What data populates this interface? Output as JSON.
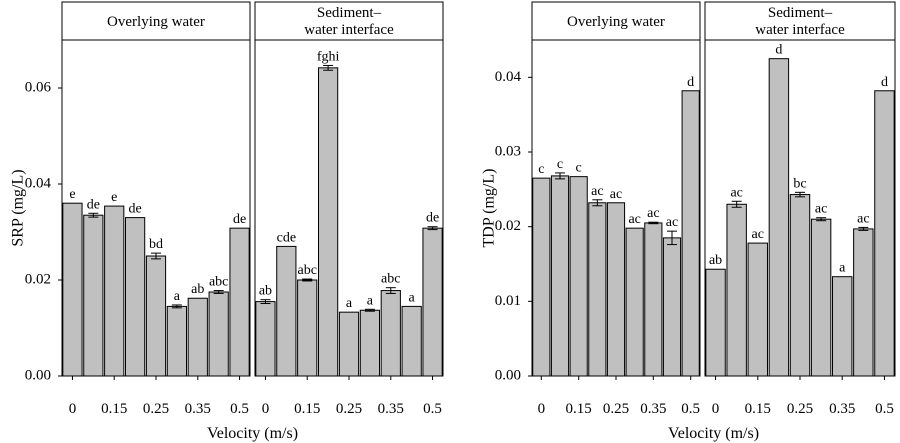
{
  "chart_data": [
    {
      "type": "bar",
      "ylabel": "SRP (mg/L)",
      "xlabel": "Velocity (m/s)",
      "ylim": [
        0,
        0.07
      ],
      "yticks": [
        {
          "value": 0,
          "label": "0.00"
        },
        {
          "value": 0.02,
          "label": "0.02"
        },
        {
          "value": 0.04,
          "label": "0.04"
        },
        {
          "value": 0.06,
          "label": "0.06"
        }
      ],
      "xtick_labels": [
        "0",
        "0.15",
        "0.25",
        "0.35",
        "0.5"
      ],
      "grid": false,
      "bar_color": "#c0c0c0",
      "panels": [
        {
          "strip": [
            "Overlying water"
          ],
          "values": [
            0.036,
            0.0335,
            0.0354,
            0.033,
            0.025,
            0.0145,
            0.0162,
            0.0175,
            0.0308
          ],
          "errors": [
            0,
            0.0004,
            0,
            0,
            0.0006,
            0.0003,
            0,
            0.0003,
            0
          ],
          "labels": [
            "e",
            "de",
            "e",
            "de",
            "bd",
            "a",
            "ab",
            "abc",
            "de"
          ]
        },
        {
          "strip": [
            "Sediment–",
            "water interface"
          ],
          "values": [
            0.0155,
            0.027,
            0.02,
            0.0642,
            0.0133,
            0.0137,
            0.0178,
            0.0145,
            0.0308
          ],
          "errors": [
            0.0004,
            0,
            0.0002,
            0.0005,
            0,
            0.0002,
            0.0006,
            0,
            0.0003
          ],
          "labels": [
            "ab",
            "cde",
            "abc",
            "fghi",
            "a",
            "a",
            "abc",
            "a",
            "de"
          ]
        }
      ]
    },
    {
      "type": "bar",
      "ylabel": "TDP (mg/L)",
      "xlabel": "Velocity (m/s)",
      "ylim": [
        0,
        0.045
      ],
      "yticks": [
        {
          "value": 0,
          "label": "0.00"
        },
        {
          "value": 0.01,
          "label": "0.01"
        },
        {
          "value": 0.02,
          "label": "0.02"
        },
        {
          "value": 0.03,
          "label": "0.03"
        },
        {
          "value": 0.04,
          "label": "0.04"
        }
      ],
      "xtick_labels": [
        "0",
        "0.15",
        "0.25",
        "0.35",
        "0.5"
      ],
      "grid": false,
      "bar_color": "#c0c0c0",
      "panels": [
        {
          "strip": [
            "Overlying water"
          ],
          "values": [
            0.0265,
            0.0268,
            0.0267,
            0.0232,
            0.0232,
            0.0198,
            0.0205,
            0.0185,
            0.0382
          ],
          "errors": [
            0,
            0.0004,
            0,
            0.0004,
            0,
            0,
            0.0001,
            0.0009,
            0
          ],
          "labels": [
            "c",
            "c",
            "c",
            "ac",
            "ac",
            "ac",
            "ac",
            "ac",
            "d"
          ]
        },
        {
          "strip": [
            "Sediment–",
            "water interface"
          ],
          "values": [
            0.0143,
            0.023,
            0.0178,
            0.0425,
            0.0243,
            0.021,
            0.0133,
            0.0197,
            0.0382
          ],
          "errors": [
            0,
            0.0004,
            0,
            0,
            0.0003,
            0.0002,
            0,
            0.0002,
            0
          ],
          "labels": [
            "ab",
            "ac",
            "ac",
            "d",
            "bc",
            "ac",
            "a",
            "ac",
            "d"
          ]
        }
      ]
    }
  ]
}
